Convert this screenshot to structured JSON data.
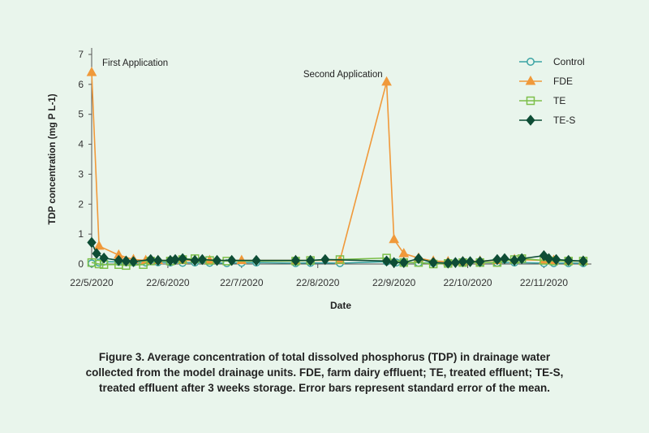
{
  "chart_data": {
    "type": "line",
    "xlabel": "Date",
    "ylabel": "TDP concentration (mg P L-1)",
    "x_tick_labels": [
      "22/5/2020",
      "22/6/2020",
      "22/7/2020",
      "22/8/2020",
      "22/9/2020",
      "22/10/2020",
      "22/11/2020"
    ],
    "x_range": [
      "2020-05-22",
      "2020-12-10"
    ],
    "ylim": [
      0,
      7
    ],
    "y_ticks": [
      0,
      1,
      2,
      3,
      4,
      5,
      6,
      7
    ],
    "grid": false,
    "legend_position": "top-right",
    "annotations": [
      {
        "text": "First Application",
        "x": "2020-05-22",
        "y": 6.4
      },
      {
        "text": "Second Application",
        "x": "2020-09-22",
        "y": 6.1
      }
    ],
    "series": [
      {
        "name": "Control",
        "color": "#3aa3a3",
        "marker": "circle",
        "points": [
          [
            "2020-05-22",
            0.02
          ],
          [
            "2020-05-25",
            0.05
          ],
          [
            "2020-05-27",
            0.08
          ],
          [
            "2020-06-02",
            0.07
          ],
          [
            "2020-06-08",
            0.05
          ],
          [
            "2020-06-13",
            0.05
          ],
          [
            "2020-06-18",
            0.06
          ],
          [
            "2020-06-23",
            0.05
          ],
          [
            "2020-06-28",
            0.04
          ],
          [
            "2020-07-03",
            0.05
          ],
          [
            "2020-07-09",
            0.04
          ],
          [
            "2020-07-16",
            0.03
          ],
          [
            "2020-07-22",
            0.04
          ],
          [
            "2020-07-28",
            0.05
          ],
          [
            "2020-08-13",
            0.03
          ],
          [
            "2020-08-19",
            0.04
          ],
          [
            "2020-08-31",
            0.03
          ],
          [
            "2020-09-19",
            0.08
          ],
          [
            "2020-09-23",
            0.05
          ],
          [
            "2020-09-26",
            0.05
          ],
          [
            "2020-10-02",
            0.04
          ],
          [
            "2020-10-08",
            0.04
          ],
          [
            "2020-10-14",
            0.03
          ],
          [
            "2020-10-20",
            0.04
          ],
          [
            "2020-10-27",
            0.05
          ],
          [
            "2020-11-03",
            0.04
          ],
          [
            "2020-11-10",
            0.05
          ],
          [
            "2020-11-22",
            0.03
          ],
          [
            "2020-11-26",
            0.03
          ],
          [
            "2020-12-02",
            0.03
          ],
          [
            "2020-12-08",
            0.03
          ]
        ]
      },
      {
        "name": "FDE",
        "color": "#f0993a",
        "marker": "triangle",
        "points": [
          [
            "2020-05-22",
            6.4
          ],
          [
            "2020-05-25",
            0.6
          ],
          [
            "2020-06-02",
            0.3
          ],
          [
            "2020-06-08",
            0.15
          ],
          [
            "2020-06-13",
            0.12
          ],
          [
            "2020-06-18",
            0.12
          ],
          [
            "2020-06-28",
            0.12
          ],
          [
            "2020-07-09",
            0.12
          ],
          [
            "2020-07-22",
            0.12
          ],
          [
            "2020-08-13",
            0.12
          ],
          [
            "2020-08-31",
            0.12
          ],
          [
            "2020-09-19",
            6.08
          ],
          [
            "2020-09-22",
            0.82
          ],
          [
            "2020-09-26",
            0.35
          ],
          [
            "2020-10-02",
            0.2
          ],
          [
            "2020-10-08",
            0.1
          ],
          [
            "2020-10-14",
            0.08
          ],
          [
            "2020-10-20",
            0.08
          ],
          [
            "2020-10-27",
            0.1
          ],
          [
            "2020-11-03",
            0.12
          ],
          [
            "2020-11-10",
            0.15
          ],
          [
            "2020-11-22",
            0.12
          ],
          [
            "2020-11-26",
            0.12
          ],
          [
            "2020-12-02",
            0.1
          ],
          [
            "2020-12-08",
            0.1
          ]
        ]
      },
      {
        "name": "TE",
        "color": "#7dbf4a",
        "marker": "square",
        "points": [
          [
            "2020-05-22",
            0.05
          ],
          [
            "2020-05-25",
            0.0
          ],
          [
            "2020-05-27",
            -0.02
          ],
          [
            "2020-06-02",
            -0.02
          ],
          [
            "2020-06-05",
            -0.05
          ],
          [
            "2020-06-12",
            -0.02
          ],
          [
            "2020-06-15",
            0.1
          ],
          [
            "2020-06-23",
            0.1
          ],
          [
            "2020-06-28",
            0.15
          ],
          [
            "2020-07-03",
            0.18
          ],
          [
            "2020-07-09",
            0.12
          ],
          [
            "2020-07-16",
            0.1
          ],
          [
            "2020-08-13",
            0.1
          ],
          [
            "2020-08-19",
            0.12
          ],
          [
            "2020-08-31",
            0.15
          ],
          [
            "2020-09-19",
            0.2
          ],
          [
            "2020-09-26",
            0.05
          ],
          [
            "2020-10-02",
            0.05
          ],
          [
            "2020-10-08",
            0.0
          ],
          [
            "2020-10-14",
            0.02
          ],
          [
            "2020-10-20",
            0.05
          ],
          [
            "2020-10-27",
            0.05
          ],
          [
            "2020-11-03",
            0.05
          ],
          [
            "2020-11-10",
            0.15
          ],
          [
            "2020-11-13",
            0.18
          ],
          [
            "2020-11-22",
            0.12
          ],
          [
            "2020-11-26",
            0.1
          ],
          [
            "2020-12-02",
            0.1
          ],
          [
            "2020-12-08",
            0.1
          ]
        ]
      },
      {
        "name": "TE-S",
        "color": "#0e4d35",
        "marker": "diamond",
        "points": [
          [
            "2020-05-22",
            0.72
          ],
          [
            "2020-05-24",
            0.35
          ],
          [
            "2020-05-27",
            0.2
          ],
          [
            "2020-06-02",
            0.12
          ],
          [
            "2020-06-05",
            0.1
          ],
          [
            "2020-06-08",
            0.08
          ],
          [
            "2020-06-15",
            0.15
          ],
          [
            "2020-06-18",
            0.12
          ],
          [
            "2020-06-23",
            0.12
          ],
          [
            "2020-06-25",
            0.15
          ],
          [
            "2020-06-28",
            0.18
          ],
          [
            "2020-07-03",
            0.12
          ],
          [
            "2020-07-06",
            0.15
          ],
          [
            "2020-07-12",
            0.12
          ],
          [
            "2020-07-18",
            0.12
          ],
          [
            "2020-07-28",
            0.12
          ],
          [
            "2020-08-13",
            0.12
          ],
          [
            "2020-08-19",
            0.12
          ],
          [
            "2020-08-25",
            0.15
          ],
          [
            "2020-09-19",
            0.1
          ],
          [
            "2020-09-22",
            0.05
          ],
          [
            "2020-09-26",
            0.05
          ],
          [
            "2020-10-02",
            0.18
          ],
          [
            "2020-10-08",
            0.05
          ],
          [
            "2020-10-14",
            0.03
          ],
          [
            "2020-10-17",
            0.05
          ],
          [
            "2020-10-20",
            0.08
          ],
          [
            "2020-10-23",
            0.08
          ],
          [
            "2020-10-27",
            0.08
          ],
          [
            "2020-11-03",
            0.15
          ],
          [
            "2020-11-06",
            0.18
          ],
          [
            "2020-11-10",
            0.12
          ],
          [
            "2020-11-13",
            0.18
          ],
          [
            "2020-11-22",
            0.28
          ],
          [
            "2020-11-24",
            0.18
          ],
          [
            "2020-11-27",
            0.15
          ],
          [
            "2020-12-02",
            0.12
          ],
          [
            "2020-12-08",
            0.1
          ]
        ]
      }
    ]
  },
  "caption": {
    "line1": "Figure 3. Average concentration of total dissolved phosphorus (TDP) in drainage water",
    "line2": "collected from the model drainage units. FDE, farm dairy effluent; TE, treated effluent; TE-S,",
    "line3": "treated effluent after 3 weeks storage. Error bars represent standard error of the mean."
  }
}
